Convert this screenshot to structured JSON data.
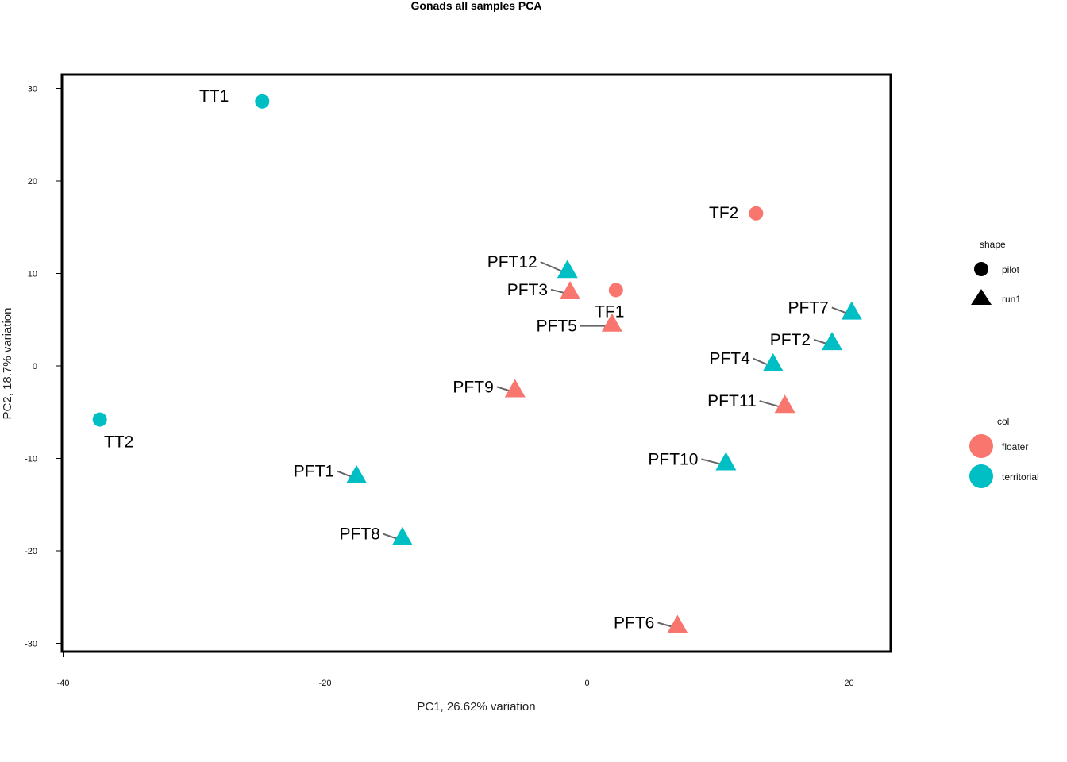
{
  "chart_data": {
    "type": "scatter",
    "title": "Gonads all samples PCA",
    "xlabel": "PC1, 26.62% variation",
    "ylabel": "PC2, 18.7% variation",
    "xlim": [
      -40,
      23
    ],
    "ylim": [
      -31,
      31.5
    ],
    "x_ticks": [
      -40,
      -20,
      0,
      20
    ],
    "y_ticks": [
      30,
      20,
      10,
      0,
      -10,
      -20,
      -30
    ],
    "grid": false,
    "colors": {
      "floater": "#F8766D",
      "territorial": "#00BFC4"
    },
    "points": [
      {
        "label": "TT1",
        "x": -24.8,
        "y": 28.6,
        "col": "territorial",
        "shape": "pilot"
      },
      {
        "label": "TT2",
        "x": -37.2,
        "y": -5.8,
        "col": "territorial",
        "shape": "pilot"
      },
      {
        "label": "TF2",
        "x": 12.9,
        "y": 16.5,
        "col": "floater",
        "shape": "pilot"
      },
      {
        "label": "TF1",
        "x": 2.2,
        "y": 8.2,
        "col": "floater",
        "shape": "pilot"
      },
      {
        "label": "PFT12",
        "x": -1.5,
        "y": 10.3,
        "col": "territorial",
        "shape": "run1"
      },
      {
        "label": "PFT3",
        "x": -1.3,
        "y": 8.0,
        "col": "floater",
        "shape": "run1"
      },
      {
        "label": "PFT5",
        "x": 1.9,
        "y": 4.5,
        "col": "floater",
        "shape": "run1"
      },
      {
        "label": "PFT7",
        "x": 20.2,
        "y": 5.8,
        "col": "territorial",
        "shape": "run1"
      },
      {
        "label": "PFT2",
        "x": 18.7,
        "y": 2.5,
        "col": "territorial",
        "shape": "run1"
      },
      {
        "label": "PFT4",
        "x": 14.2,
        "y": 0.2,
        "col": "territorial",
        "shape": "run1"
      },
      {
        "label": "PFT9",
        "x": -5.5,
        "y": -2.6,
        "col": "floater",
        "shape": "run1"
      },
      {
        "label": "PFT11",
        "x": 15.1,
        "y": -4.3,
        "col": "floater",
        "shape": "run1"
      },
      {
        "label": "PFT10",
        "x": 10.6,
        "y": -10.5,
        "col": "territorial",
        "shape": "run1"
      },
      {
        "label": "PFT1",
        "x": -17.6,
        "y": -11.9,
        "col": "territorial",
        "shape": "run1"
      },
      {
        "label": "PFT8",
        "x": -14.1,
        "y": -18.6,
        "col": "territorial",
        "shape": "run1"
      },
      {
        "label": "PFT6",
        "x": 6.9,
        "y": -28.1,
        "col": "floater",
        "shape": "run1"
      }
    ],
    "legend": {
      "placement": "right",
      "shape_title": "shape",
      "shape_items": [
        "pilot",
        "run1"
      ],
      "col_title": "col",
      "col_items": [
        "floater",
        "territorial"
      ]
    }
  }
}
